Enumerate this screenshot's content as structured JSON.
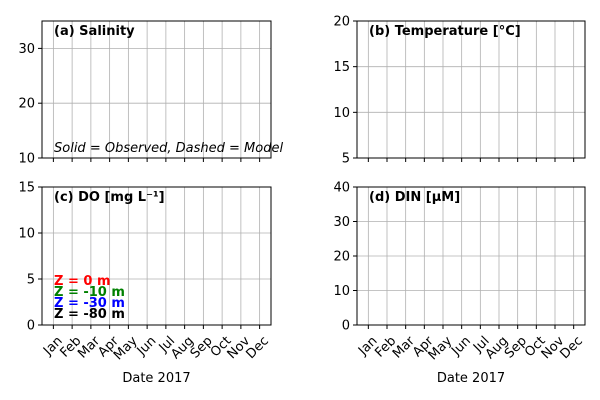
{
  "chart_data": [
    {
      "type": "line",
      "title": "(a) Salinity",
      "ylim": [
        10,
        35
      ],
      "yticks": [
        10,
        20,
        30
      ],
      "categories": [
        "Jan",
        "Feb",
        "Mar",
        "Apr",
        "May",
        "Jun",
        "Jul",
        "Aug",
        "Sep",
        "Oct",
        "Nov",
        "Dec"
      ],
      "show_x_ticklabels": false,
      "xlabel": "",
      "annotation": "Solid = Observed, Dashed = Model",
      "grid": true,
      "series": []
    },
    {
      "type": "line",
      "title": "(b) Temperature [°C]",
      "ylim": [
        5,
        20
      ],
      "yticks": [
        5,
        10,
        15,
        20
      ],
      "categories": [
        "Jan",
        "Feb",
        "Mar",
        "Apr",
        "May",
        "Jun",
        "Jul",
        "Aug",
        "Sep",
        "Oct",
        "Nov",
        "Dec"
      ],
      "show_x_ticklabels": false,
      "xlabel": "",
      "grid": true,
      "series": []
    },
    {
      "type": "line",
      "title": "(c) DO [mg L⁻¹]",
      "ylim": [
        0,
        15
      ],
      "yticks": [
        0,
        5,
        10,
        15
      ],
      "categories": [
        "Jan",
        "Feb",
        "Mar",
        "Apr",
        "May",
        "Jun",
        "Jul",
        "Aug",
        "Sep",
        "Oct",
        "Nov",
        "Dec"
      ],
      "show_x_ticklabels": true,
      "xlabel": "Date 2017",
      "grid": true,
      "legend": [
        {
          "label": "Z =   0 m",
          "color": "#ff0000"
        },
        {
          "label": "Z =  -10 m",
          "color": "#008000"
        },
        {
          "label": "Z =  -30 m",
          "color": "#0000ff"
        },
        {
          "label": "Z =  -80 m",
          "color": "#000000"
        }
      ],
      "series": []
    },
    {
      "type": "line",
      "title": "(d) DIN [μM]",
      "ylim": [
        0,
        40
      ],
      "yticks": [
        0,
        10,
        20,
        30,
        40
      ],
      "categories": [
        "Jan",
        "Feb",
        "Mar",
        "Apr",
        "May",
        "Jun",
        "Jul",
        "Aug",
        "Sep",
        "Oct",
        "Nov",
        "Dec"
      ],
      "show_x_ticklabels": true,
      "xlabel": "Date 2017",
      "grid": true,
      "series": []
    }
  ]
}
